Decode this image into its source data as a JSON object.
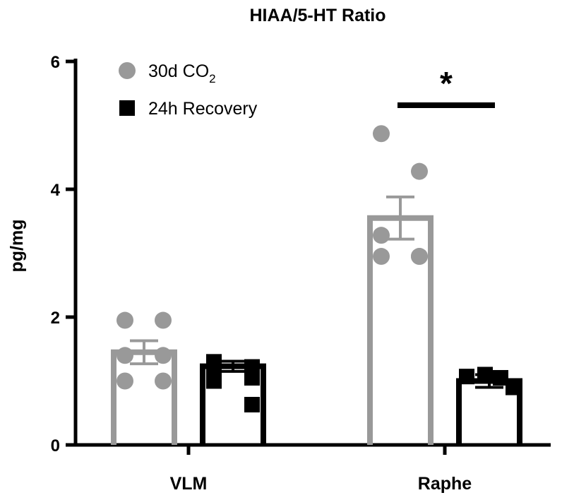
{
  "chart_data": {
    "type": "bar",
    "title": "HIAA/5-HT  Ratio",
    "xlabel": "",
    "ylabel": "pg/mg",
    "ylim": [
      0,
      6
    ],
    "yticks": [
      0,
      2,
      4,
      6
    ],
    "categories": [
      "VLM",
      "Raphe"
    ],
    "legend_placement": "top-left",
    "significance": {
      "category": "Raphe",
      "label": "*"
    },
    "series": [
      {
        "name": "30d CO",
        "name_subscript": "2",
        "color": "#999999",
        "marker": "circle",
        "values": [
          1.45,
          3.55
        ],
        "sem": [
          0.18,
          0.33
        ],
        "points": [
          [
            1.95,
            1.95,
            1.4,
            1.4,
            1.0,
            1.0
          ],
          [
            4.87,
            4.28,
            3.28,
            2.95,
            2.95,
            2.95
          ]
        ]
      },
      {
        "name": "24h Recovery",
        "color": "#000000",
        "marker": "square",
        "values": [
          1.23,
          1.0
        ],
        "sem": [
          0.08,
          0.1
        ],
        "points": [
          [
            1.3,
            1.22,
            1.18,
            1.05,
            1.0,
            0.63
          ],
          [
            1.07,
            1.1,
            1.05,
            0.9
          ]
        ]
      }
    ]
  }
}
